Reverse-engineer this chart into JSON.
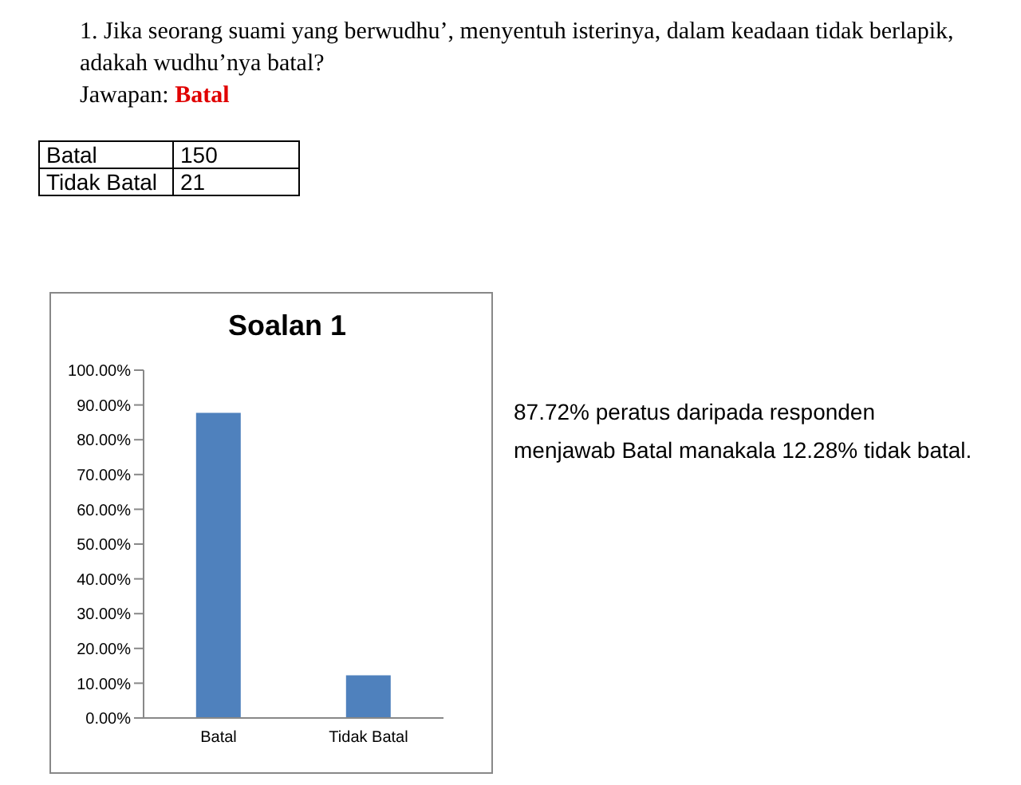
{
  "chart_data": {
    "type": "bar",
    "title": "Soalan 1",
    "categories": [
      "Batal",
      "Tidak Batal"
    ],
    "values": [
      87.72,
      12.28
    ],
    "color": "#4f81bd",
    "ylim": [
      0,
      100
    ],
    "yticks": [
      {
        "value": 0,
        "label": "0.00%"
      },
      {
        "value": 10,
        "label": "10.00%"
      },
      {
        "value": 20,
        "label": "20.00%"
      },
      {
        "value": 30,
        "label": "30.00%"
      },
      {
        "value": 40,
        "label": "40.00%"
      },
      {
        "value": 50,
        "label": "50.00%"
      },
      {
        "value": 60,
        "label": "60.00%"
      },
      {
        "value": 70,
        "label": "70.00%"
      },
      {
        "value": 80,
        "label": "80.00%"
      },
      {
        "value": 90,
        "label": "90.00%"
      },
      {
        "value": 100,
        "label": "100.00%"
      }
    ],
    "grid": false,
    "legend": false,
    "annotations": [
      "1. Jika seorang suami yang berwudhu’, menyentuh isterinya, dalam keadaan tidak berlapik, adakah wudhu’nya batal?",
      "Jawapan:",
      "Batal",
      "Batal",
      "150",
      "Tidak Batal",
      "21",
      "87.72% peratus daripada responden menjawab Batal manakala 12.28% tidak batal."
    ]
  }
}
